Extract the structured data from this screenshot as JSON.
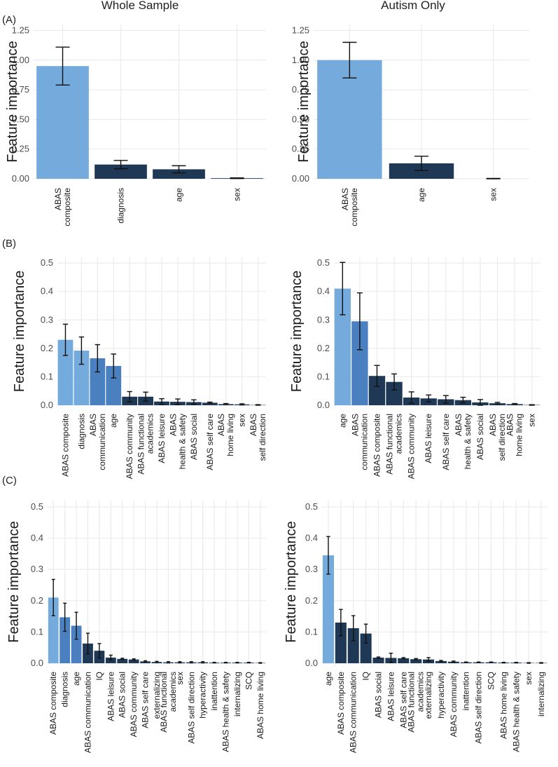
{
  "figure": {
    "column_titles": [
      "Whole Sample",
      "Autism Only"
    ],
    "panel_labels": [
      "(A)",
      "(B)",
      "(C)"
    ]
  },
  "colors": {
    "light": "#74aadc",
    "medium": "#4a80c0",
    "dark": "#1e3855",
    "grid": "#ebebeb"
  },
  "chart_data": [
    {
      "id": "A-whole",
      "type": "bar",
      "title": "",
      "xlabel": "",
      "ylabel": "Feature importance",
      "ylim": [
        0,
        1.3
      ],
      "yticks": [
        "0.00",
        "0.25",
        "0.50",
        "0.75",
        "1.00",
        "1.25"
      ],
      "grid": true,
      "categories": [
        "ABAS\ncomposite",
        "diagnosis",
        "age",
        "sex"
      ],
      "values": [
        0.95,
        0.12,
        0.08,
        0.005
      ],
      "errors": [
        0.16,
        0.035,
        0.03,
        0.003
      ],
      "colors": [
        "light",
        "dark",
        "dark",
        "dark"
      ]
    },
    {
      "id": "A-autism",
      "type": "bar",
      "title": "",
      "xlabel": "",
      "ylabel": "Feature importance",
      "ylim": [
        0,
        1.3
      ],
      "yticks": [
        "0.00",
        "0.25",
        "0.50",
        "0.75",
        "1.00",
        "1.25"
      ],
      "grid": true,
      "categories": [
        "ABAS\ncomposite",
        "age",
        "sex"
      ],
      "values": [
        1.0,
        0.13,
        0.0
      ],
      "errors": [
        0.15,
        0.06,
        0.003
      ],
      "colors": [
        "light",
        "dark",
        "dark"
      ]
    },
    {
      "id": "B-whole",
      "type": "bar",
      "title": "",
      "xlabel": "",
      "ylabel": "Feature importance",
      "ylim": [
        0,
        0.52
      ],
      "yticks": [
        "0.0",
        "0.1",
        "0.2",
        "0.3",
        "0.4",
        "0.5"
      ],
      "grid": true,
      "categories": [
        "ABAS composite",
        "diagnosis",
        "ABAS\ncommunication",
        "age",
        "ABAS community",
        "ABAS functional\nacademics",
        "ABAS leisure",
        "ABAS\nhealth & safety",
        "ABAS social",
        "ABAS self care",
        "ABAS\nhome living",
        "sex",
        "ABAS\nself direction"
      ],
      "values": [
        0.23,
        0.192,
        0.165,
        0.138,
        0.03,
        0.03,
        0.013,
        0.012,
        0.011,
        0.009,
        0.004,
        0.003,
        0.001
      ],
      "errors": [
        0.055,
        0.048,
        0.048,
        0.042,
        0.018,
        0.016,
        0.01,
        0.01,
        0.008,
        0.002,
        0.002,
        0.002,
        0.001
      ],
      "colors": [
        "light",
        "light",
        "medium",
        "medium",
        "dark",
        "dark",
        "dark",
        "dark",
        "dark",
        "dark",
        "dark",
        "dark",
        "dark"
      ]
    },
    {
      "id": "B-autism",
      "type": "bar",
      "title": "",
      "xlabel": "",
      "ylabel": "Feature importance",
      "ylim": [
        0,
        0.52
      ],
      "yticks": [
        "0.0",
        "0.1",
        "0.2",
        "0.3",
        "0.4",
        "0.5"
      ],
      "grid": true,
      "categories": [
        "age",
        "ABAS\ncommunication",
        "ABAS composite",
        "ABAS functional\nacademics",
        "ABAS community",
        "ABAS leisure",
        "ABAS self care",
        "ABAS\nhealth & safety",
        "ABAS social",
        "ABAS\nself direction",
        "ABAS\nhome living",
        "sex"
      ],
      "values": [
        0.41,
        0.295,
        0.103,
        0.082,
        0.027,
        0.024,
        0.021,
        0.018,
        0.01,
        0.007,
        0.004,
        0.001
      ],
      "errors": [
        0.092,
        0.1,
        0.037,
        0.028,
        0.02,
        0.012,
        0.013,
        0.01,
        0.01,
        0.003,
        0.002,
        0.001
      ],
      "colors": [
        "light",
        "medium",
        "dark",
        "dark",
        "dark",
        "dark",
        "dark",
        "dark",
        "dark",
        "dark",
        "dark",
        "dark"
      ]
    },
    {
      "id": "C-whole",
      "type": "bar",
      "title": "",
      "xlabel": "",
      "ylabel": "Feature importance",
      "ylim": [
        0,
        0.52
      ],
      "yticks": [
        "0.0",
        "0.1",
        "0.2",
        "0.3",
        "0.4",
        "0.5"
      ],
      "grid": true,
      "categories": [
        "ABAS composite",
        "diagnosis",
        "age",
        "ABAS communication",
        "IQ",
        "ABAS leisure",
        "ABAS social",
        "ABAS community",
        "ABAS self care",
        "externalizing",
        "ABAS functional\nacademics",
        "sex",
        "ABAS self direction",
        "hyperactivity",
        "inattention",
        "ABAS health & safety",
        "internalizing",
        "SCQ",
        "ABAS home living"
      ],
      "values": [
        0.21,
        0.147,
        0.12,
        0.063,
        0.04,
        0.018,
        0.014,
        0.012,
        0.006,
        0.004,
        0.003,
        0.003,
        0.003,
        0.003,
        0.002,
        0.002,
        0.002,
        0.002,
        0.001
      ],
      "errors": [
        0.058,
        0.045,
        0.043,
        0.033,
        0.023,
        0.008,
        0.002,
        0.002,
        0.002,
        0.002,
        0.002,
        0.002,
        0.002,
        0.002,
        0.001,
        0.001,
        0.001,
        0.001,
        0.001
      ],
      "colors": [
        "light",
        "medium",
        "medium",
        "dark",
        "dark",
        "dark",
        "dark",
        "dark",
        "dark",
        "dark",
        "dark",
        "dark",
        "dark",
        "dark",
        "dark",
        "dark",
        "dark",
        "dark",
        "dark"
      ]
    },
    {
      "id": "C-autism",
      "type": "bar",
      "title": "",
      "xlabel": "",
      "ylabel": "Feature importance",
      "ylim": [
        0,
        0.52
      ],
      "yticks": [
        "0.0",
        "0.1",
        "0.2",
        "0.3",
        "0.4",
        "0.5"
      ],
      "grid": true,
      "categories": [
        "age",
        "ABAS composite",
        "ABAS communication",
        "IQ",
        "ABAS social",
        "ABAS leisure",
        "ABAS self care",
        "ABAS functional\nacademics",
        "externalizing",
        "hyperactivity",
        "ABAS community",
        "inattention",
        "ABAS self direction",
        "SCQ",
        "ABAS home living",
        "ABAS health & safety",
        "sex",
        "internalizing"
      ],
      "values": [
        0.345,
        0.13,
        0.112,
        0.095,
        0.018,
        0.017,
        0.016,
        0.013,
        0.012,
        0.007,
        0.005,
        0.003,
        0.003,
        0.003,
        0.002,
        0.002,
        0.001,
        0.001
      ],
      "errors": [
        0.06,
        0.042,
        0.04,
        0.03,
        0.002,
        0.015,
        0.002,
        0.002,
        0.006,
        0.002,
        0.002,
        0.001,
        0.001,
        0.001,
        0.001,
        0.001,
        0.001,
        0.001
      ],
      "colors": [
        "light",
        "dark",
        "dark",
        "dark",
        "dark",
        "dark",
        "dark",
        "dark",
        "dark",
        "dark",
        "dark",
        "dark",
        "dark",
        "dark",
        "dark",
        "dark",
        "dark",
        "dark"
      ]
    }
  ]
}
